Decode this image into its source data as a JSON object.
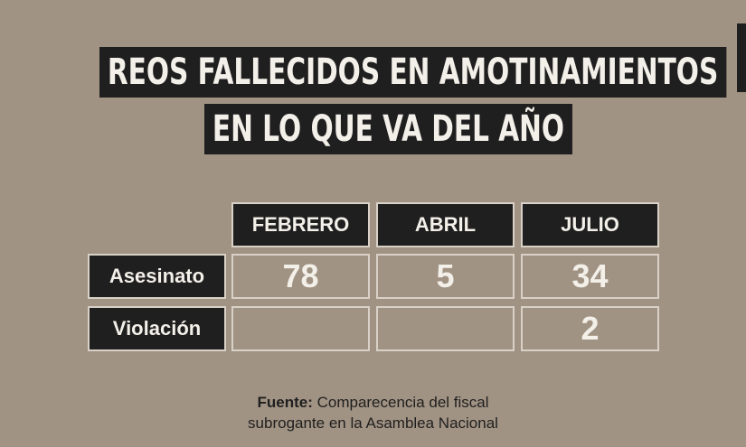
{
  "title": {
    "line1": "REOS FALLECIDOS EN AMOTINAMIENTOS",
    "line2": "EN LO QUE VA DEL AÑO"
  },
  "chart_data": {
    "type": "table",
    "columns": [
      "FEBRERO",
      "ABRIL",
      "JULIO"
    ],
    "rows": [
      {
        "label": "Asesinato",
        "values": [
          "78",
          "5",
          "34"
        ]
      },
      {
        "label": "Violación",
        "values": [
          "",
          "",
          "2"
        ]
      }
    ]
  },
  "source": {
    "label": "Fuente:",
    "line1": "Comparecencia del fiscal",
    "line2": "subrogante en la Asamblea Nacional"
  },
  "colors": {
    "background": "#a19383",
    "dark": "#1f1f1f",
    "text_light": "#f3efe9"
  }
}
